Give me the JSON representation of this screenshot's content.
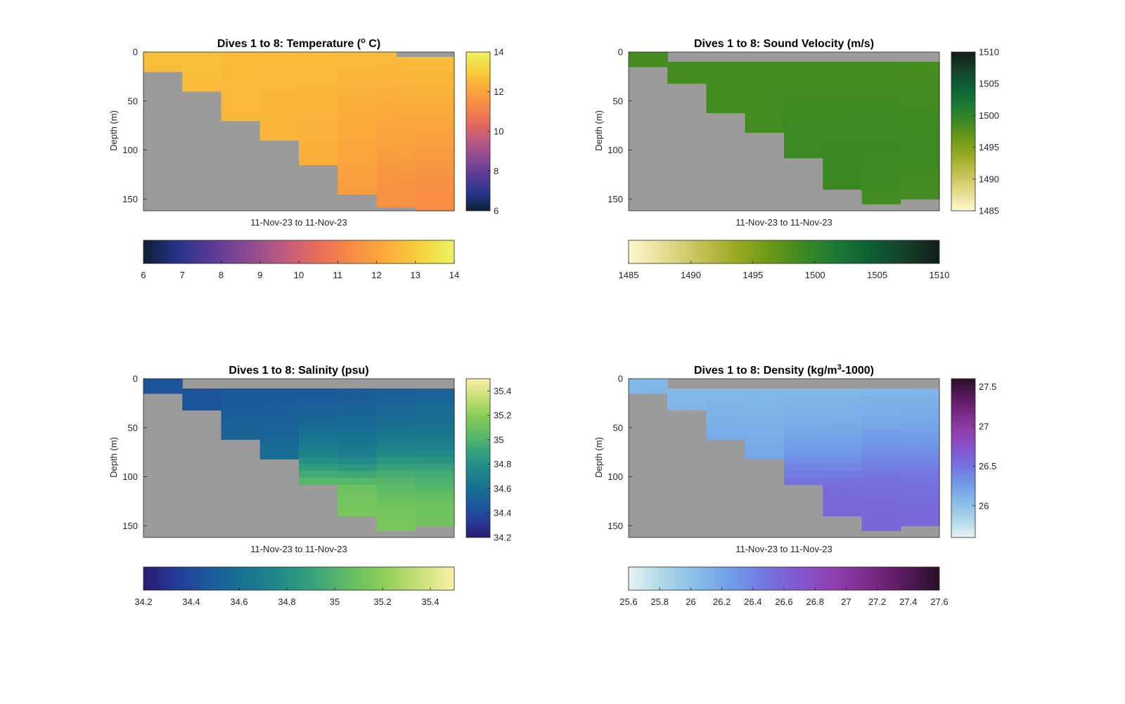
{
  "figure": {
    "background": "#ffffff",
    "nodata_color": "#9b9b9b"
  },
  "chart_data": [
    {
      "type": "heatmap",
      "title_parts": [
        "Dives 1 to 8: Temperature (",
        "o",
        " C)"
      ],
      "xlabel": "11-Nov-23 to 11-Nov-23",
      "ylabel": "Depth (m)",
      "ylim": [
        0,
        162
      ],
      "y_ticks": [
        0,
        50,
        100,
        150
      ],
      "side_colorbar": {
        "min": 6,
        "max": 14,
        "ticks": [
          "6",
          "8",
          "10",
          "12",
          "14"
        ]
      },
      "bottom_colorbar": {
        "min": 6,
        "max": 14,
        "ticks": [
          "6",
          "7",
          "8",
          "9",
          "10",
          "11",
          "12",
          "13",
          "14"
        ]
      },
      "colormap": [
        "#0b1f33",
        "#28348a",
        "#5b3a96",
        "#8a4a92",
        "#bb5a80",
        "#e76b5c",
        "#f78a45",
        "#fbab3a",
        "#f6d13b",
        "#e9f464"
      ],
      "profiles": 8,
      "sample_columns": [
        {
          "surface": 0,
          "bottom": 20,
          "values": [
            12.7,
            12.6
          ]
        },
        {
          "surface": 0,
          "bottom": 40,
          "values": [
            12.7,
            12.6
          ]
        },
        {
          "surface": 0,
          "bottom": 70,
          "values": [
            12.6,
            12.55,
            12.5
          ]
        },
        {
          "surface": 0,
          "bottom": 90,
          "values": [
            12.6,
            12.5,
            12.45
          ]
        },
        {
          "surface": 0,
          "bottom": 115,
          "values": [
            12.6,
            12.5,
            12.4,
            12.3
          ]
        },
        {
          "surface": 0,
          "bottom": 145,
          "values": [
            12.6,
            12.4,
            12.2,
            12.0,
            11.8
          ]
        },
        {
          "surface": 5,
          "bottom": 158,
          "values": [
            12.6,
            12.4,
            12.1,
            11.9,
            11.6,
            11.5
          ]
        },
        {
          "surface": 5,
          "bottom": 162,
          "values": [
            12.6,
            12.4,
            12.1,
            11.8,
            11.5,
            11.4
          ]
        }
      ]
    },
    {
      "type": "heatmap",
      "title_parts": [
        "Dives 1 to 8: Sound Velocity (m/s)"
      ],
      "xlabel": "11-Nov-23 to 11-Nov-23",
      "ylabel": "Depth (m)",
      "ylim": [
        0,
        162
      ],
      "y_ticks": [
        0,
        50,
        100,
        150
      ],
      "side_colorbar": {
        "min": 1485,
        "max": 1510,
        "ticks": [
          "1485",
          "1490",
          "1495",
          "1500",
          "1505",
          "1510"
        ]
      },
      "bottom_colorbar": {
        "min": 1485,
        "max": 1510,
        "ticks": [
          "1485",
          "1490",
          "1495",
          "1500",
          "1505",
          "1510"
        ]
      },
      "colormap": [
        "#fdf8d0",
        "#e6dd92",
        "#c7c25a",
        "#9fac25",
        "#6f9b16",
        "#3f8a22",
        "#1a7a34",
        "#0e6034",
        "#14402a",
        "#121e16"
      ],
      "profiles": 8,
      "sample_columns": [
        {
          "surface": 0,
          "bottom": 15,
          "values": [
            1498.6,
            1498.5
          ]
        },
        {
          "surface": 10,
          "bottom": 32,
          "values": [
            1498.6,
            1498.5
          ]
        },
        {
          "surface": 10,
          "bottom": 62,
          "values": [
            1498.6,
            1498.6,
            1498.7
          ]
        },
        {
          "surface": 10,
          "bottom": 82,
          "values": [
            1498.6,
            1498.7,
            1498.8
          ]
        },
        {
          "surface": 10,
          "bottom": 108,
          "values": [
            1498.6,
            1498.8,
            1499.0,
            1499.1
          ]
        },
        {
          "surface": 10,
          "bottom": 140,
          "values": [
            1498.6,
            1498.8,
            1499.0,
            1499.2,
            1499.1
          ]
        },
        {
          "surface": 10,
          "bottom": 155,
          "values": [
            1498.6,
            1498.8,
            1499.0,
            1499.1,
            1498.9,
            1498.7
          ]
        },
        {
          "surface": 10,
          "bottom": 150,
          "values": [
            1498.5,
            1498.7,
            1498.9,
            1499.0,
            1498.8,
            1498.6
          ]
        }
      ]
    },
    {
      "type": "heatmap",
      "title_parts": [
        "Dives 1 to 8: Salinity (psu)"
      ],
      "xlabel": "11-Nov-23 to 11-Nov-23",
      "ylabel": "Depth (m)",
      "ylim": [
        0,
        162
      ],
      "y_ticks": [
        0,
        50,
        100,
        150
      ],
      "side_colorbar": {
        "min": 34.2,
        "max": 35.5,
        "ticks": [
          "34.2",
          "34.4",
          "34.6",
          "34.8",
          "35",
          "35.2",
          "35.4"
        ]
      },
      "bottom_colorbar": {
        "min": 34.2,
        "max": 35.5,
        "ticks": [
          "34.2",
          "34.4",
          "34.6",
          "34.8",
          "35",
          "35.2",
          "35.4"
        ]
      },
      "colormap": [
        "#2a1a70",
        "#253d9b",
        "#1a5d9a",
        "#18758f",
        "#218c86",
        "#3aa57a",
        "#62bd62",
        "#8fcf57",
        "#c8e07a",
        "#faf0a8"
      ],
      "profiles": 8,
      "sample_columns": [
        {
          "surface": 0,
          "bottom": 15,
          "values": [
            34.45,
            34.45
          ]
        },
        {
          "surface": 10,
          "bottom": 32,
          "values": [
            34.45,
            34.45
          ]
        },
        {
          "surface": 10,
          "bottom": 62,
          "values": [
            34.47,
            34.5,
            34.55
          ]
        },
        {
          "surface": 10,
          "bottom": 82,
          "values": [
            34.47,
            34.52,
            34.6
          ]
        },
        {
          "surface": 10,
          "bottom": 108,
          "values": [
            34.47,
            34.55,
            34.75,
            35.1
          ]
        },
        {
          "surface": 10,
          "bottom": 140,
          "values": [
            34.48,
            34.56,
            34.7,
            35.1,
            35.15
          ]
        },
        {
          "surface": 10,
          "bottom": 155,
          "values": [
            34.5,
            34.58,
            34.72,
            35.0,
            35.12,
            35.15
          ]
        },
        {
          "surface": 10,
          "bottom": 150,
          "values": [
            34.52,
            34.6,
            34.7,
            34.95,
            35.1,
            35.12
          ]
        }
      ]
    },
    {
      "type": "heatmap",
      "title_parts": [
        "Dives 1 to 8: Density (kg/m",
        "3",
        "-1000)"
      ],
      "xlabel": "11-Nov-23 to 11-Nov-23",
      "ylabel": "Depth (m)",
      "ylim": [
        0,
        162
      ],
      "y_ticks": [
        0,
        50,
        100,
        150
      ],
      "side_colorbar": {
        "min": 25.6,
        "max": 27.6,
        "ticks": [
          "26",
          "26.5",
          "27",
          "27.5"
        ]
      },
      "bottom_colorbar": {
        "min": 25.6,
        "max": 27.6,
        "ticks": [
          "25.6",
          "25.8",
          "26",
          "26.2",
          "26.4",
          "26.6",
          "26.8",
          "27",
          "27.2",
          "27.4",
          "27.6"
        ]
      },
      "colormap": [
        "#e6f3f4",
        "#aed6e6",
        "#86bde8",
        "#6f9be8",
        "#7474e0",
        "#8455ce",
        "#8f3fae",
        "#7b2a86",
        "#561a5a",
        "#2b0f28"
      ],
      "profiles": 8,
      "sample_columns": [
        {
          "surface": 0,
          "bottom": 15,
          "values": [
            26.08,
            26.1
          ]
        },
        {
          "surface": 10,
          "bottom": 32,
          "values": [
            26.08,
            26.1
          ]
        },
        {
          "surface": 10,
          "bottom": 62,
          "values": [
            26.08,
            26.12,
            26.18
          ]
        },
        {
          "surface": 10,
          "bottom": 82,
          "values": [
            26.08,
            26.13,
            26.2
          ]
        },
        {
          "surface": 10,
          "bottom": 108,
          "values": [
            26.08,
            26.15,
            26.3,
            26.55
          ]
        },
        {
          "surface": 10,
          "bottom": 140,
          "values": [
            26.08,
            26.16,
            26.3,
            26.55,
            26.6
          ]
        },
        {
          "surface": 10,
          "bottom": 155,
          "values": [
            26.1,
            26.17,
            26.32,
            26.5,
            26.58,
            26.6
          ]
        },
        {
          "surface": 10,
          "bottom": 150,
          "values": [
            26.1,
            26.18,
            26.3,
            26.48,
            26.55,
            26.58
          ]
        }
      ]
    }
  ]
}
